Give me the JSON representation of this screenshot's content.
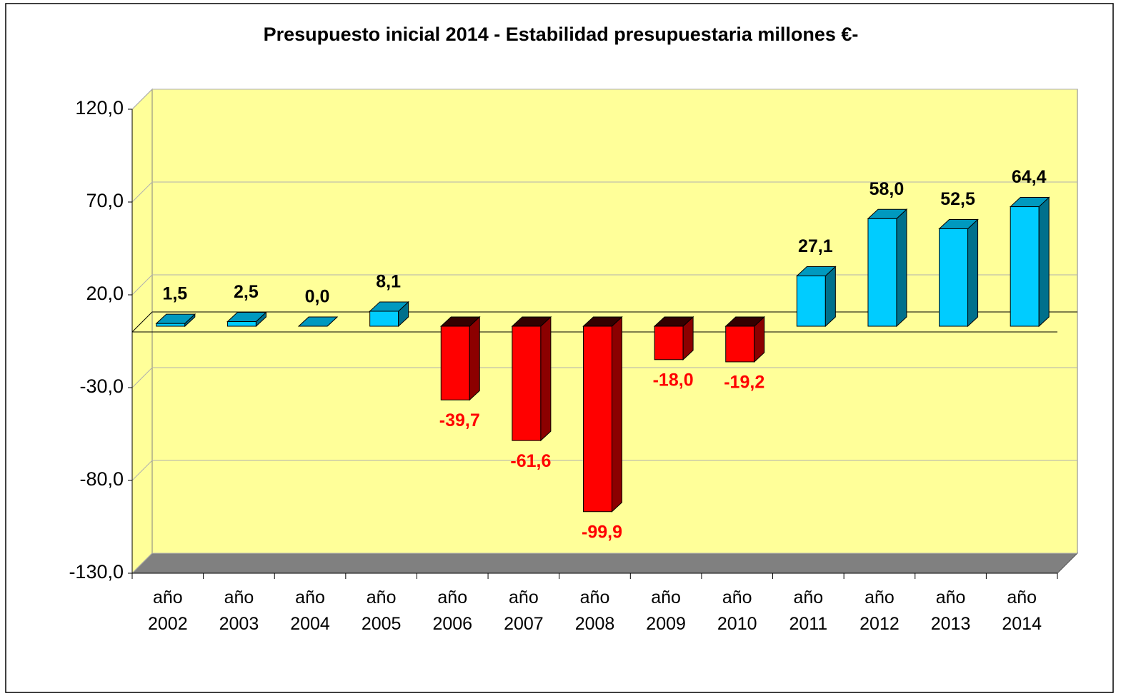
{
  "chart_data": {
    "type": "bar3d",
    "title": "Presupuesto inicial 2014 - Estabilidad presupuestaria  millones €-",
    "categories": [
      "año 2002",
      "año 2003",
      "año 2004",
      "año 2005",
      "año 2006",
      "año 2007",
      "año 2008",
      "año 2009",
      "año 2010",
      "año 2011",
      "año 2012",
      "año 2013",
      "año 2014"
    ],
    "values": [
      1.5,
      2.5,
      0.0,
      8.1,
      -39.7,
      -61.6,
      -99.9,
      -18.0,
      -19.2,
      27.1,
      58.0,
      52.5,
      64.4
    ],
    "value_labels": [
      "1,5",
      "2,5",
      "0,0",
      "8,1",
      "-39,7",
      "-61,6",
      "-99,9",
      "-18,0",
      "-19,2",
      "27,1",
      "58,0",
      "52,5",
      "64,4"
    ],
    "positive_color": "#00ccff",
    "negative_color": "#ff0000",
    "ylim": [
      -130,
      120
    ],
    "yticks": [
      {
        "value": -130,
        "label": "-130,0"
      },
      {
        "value": -80,
        "label": "-80,0"
      },
      {
        "value": -30,
        "label": "-30,0"
      },
      {
        "value": 20,
        "label": "20,0"
      },
      {
        "value": 70,
        "label": "70,0"
      },
      {
        "value": 120,
        "label": "120,0"
      }
    ],
    "grid": true
  }
}
